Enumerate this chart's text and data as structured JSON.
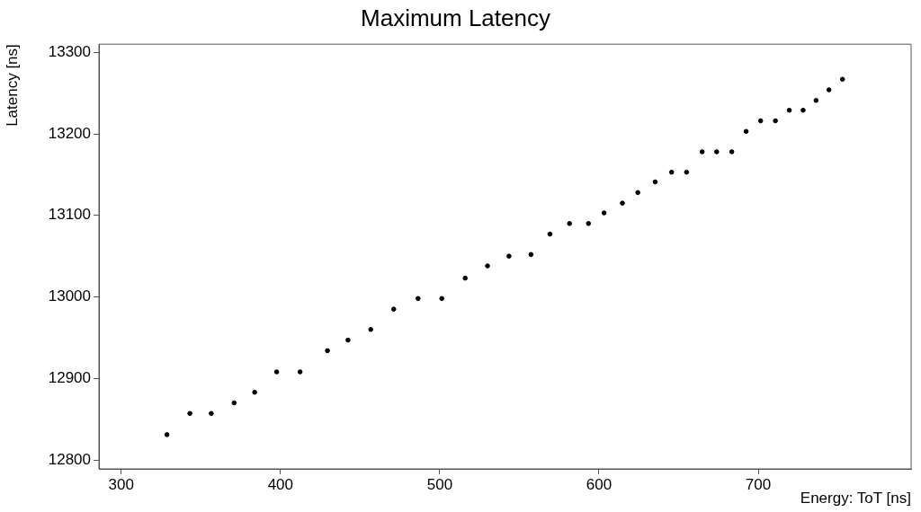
{
  "chart_data": {
    "type": "scatter",
    "title": "Maximum Latency",
    "xlabel": "Energy: ToT [ns]",
    "ylabel": "Latency [ns]",
    "xlim": [
      286,
      796
    ],
    "xticks": [
      300,
      400,
      500,
      600,
      700
    ],
    "ylim": [
      12789,
      13310
    ],
    "yticks": [
      12800,
      12900,
      13000,
      13100,
      13200,
      13300
    ],
    "marker": "circle",
    "grid": false,
    "legend": false,
    "series": [
      {
        "color": "#000000",
        "x": [
          328.7,
          343.1,
          356.5,
          370.9,
          383.8,
          397.6,
          412.3,
          429.5,
          442.4,
          456.7,
          471.1,
          486.4,
          501.3,
          516.0,
          530.0,
          543.5,
          557.3,
          569.2,
          581.5,
          593.4,
          603.2,
          614.7,
          624.4,
          635.3,
          645.6,
          655.0,
          664.8,
          673.9,
          683.4,
          692.4,
          701.5,
          710.8,
          719.5,
          728.2,
          736.3,
          744.4,
          752.9
        ],
        "values": [
          12831,
          12857,
          12857,
          12870,
          12883,
          12908,
          12908,
          12934,
          12947,
          12960,
          12985,
          12998,
          12998,
          13023,
          13038,
          13050,
          13052,
          13077,
          13090,
          13090,
          13103,
          13115,
          13128,
          13141,
          13153,
          13153,
          13178,
          13178,
          13178,
          13203,
          13216,
          13216,
          13229,
          13229,
          13241,
          13254,
          13267
        ]
      }
    ]
  }
}
